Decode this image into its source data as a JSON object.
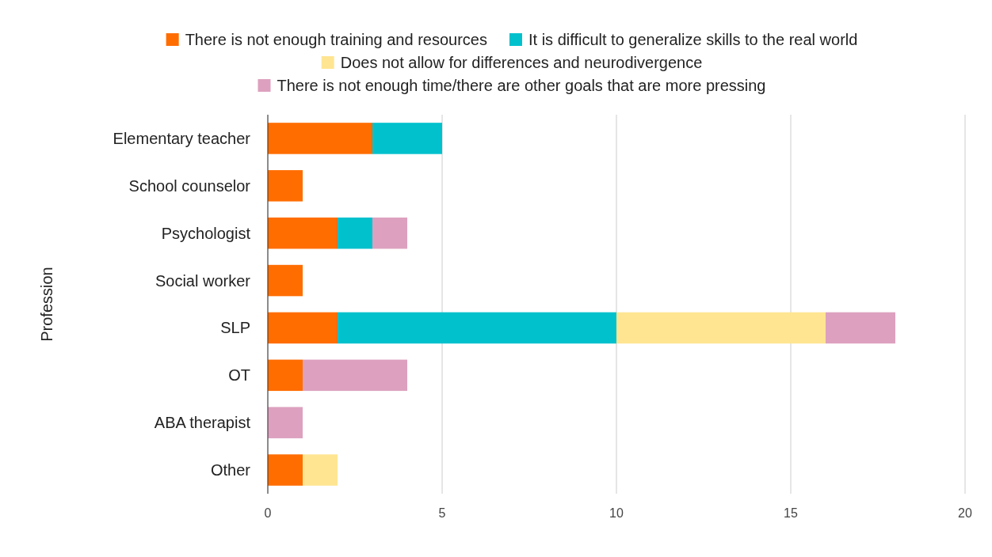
{
  "chart_data": {
    "type": "bar",
    "orientation": "horizontal",
    "stacked": true,
    "ylabel": "Profession",
    "categories": [
      "Elementary teacher",
      "School counselor",
      "Psychologist",
      "Social worker",
      "SLP",
      "OT",
      "ABA therapist",
      "Other"
    ],
    "series": [
      {
        "name": "There is not enough training and resources",
        "color": "#ff6d01",
        "values": [
          3,
          1,
          2,
          1,
          2,
          1,
          null,
          1
        ]
      },
      {
        "name": "It is difficult to generalize skills to the real world",
        "color": "#00c1cc",
        "values": [
          2,
          null,
          1,
          null,
          8,
          null,
          null,
          null
        ]
      },
      {
        "name": "Does not allow for differences and neurodivergence",
        "color": "#ffe592",
        "values": [
          null,
          null,
          null,
          null,
          6,
          null,
          null,
          1
        ]
      },
      {
        "name": "There is not enough time/there are other goals that are more pressing",
        "color": "#dda1bf",
        "values": [
          null,
          null,
          1,
          null,
          2,
          3,
          1,
          null
        ]
      }
    ],
    "xlim": [
      0,
      20
    ],
    "xticks": [
      0,
      5,
      10,
      15,
      20
    ],
    "grid": "x",
    "legend": "top"
  }
}
